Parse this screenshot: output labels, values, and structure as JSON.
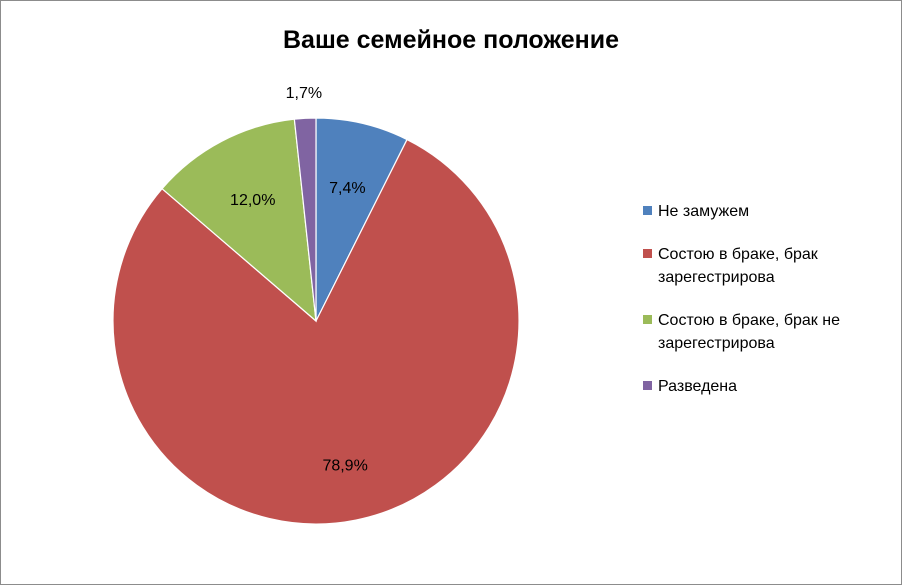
{
  "chart_data": {
    "type": "pie",
    "title": "Ваше семейное положение",
    "slices": [
      {
        "label": "Не замужем",
        "value": 7.4,
        "display": "7,4%",
        "color": "#4f81bd"
      },
      {
        "label": "Состою в браке, брак зарегестрирова",
        "value": 78.9,
        "display": "78,9%",
        "color": "#c0504d"
      },
      {
        "label": "Состою в браке, брак не зарегестрирова",
        "value": 12.0,
        "display": "12,0%",
        "color": "#9bbb59"
      },
      {
        "label": "Разведена",
        "value": 1.7,
        "display": "1,7%",
        "color": "#8064a2"
      }
    ],
    "legend_position": "right"
  }
}
